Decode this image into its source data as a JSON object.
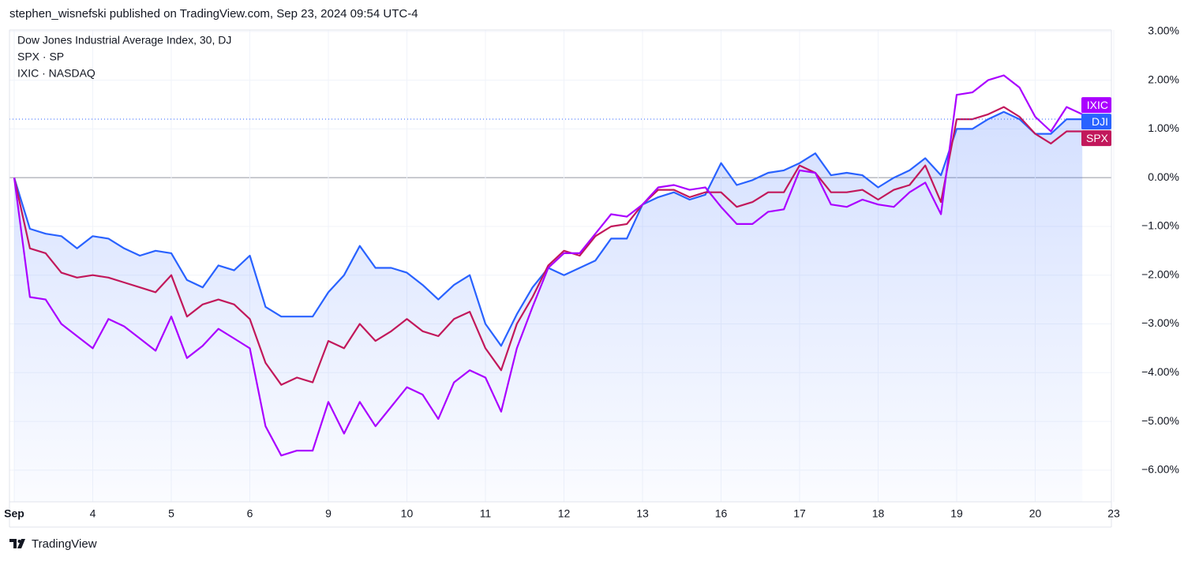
{
  "header": {
    "text": "stephen_wisnefski published on TradingView.com, Sep 23, 2024 09:54 UTC-4"
  },
  "footer": {
    "brand": "TradingView"
  },
  "chart_data": {
    "type": "line",
    "x": [
      0,
      0.2,
      0.4,
      0.6,
      0.8,
      1,
      1.2,
      1.4,
      1.6,
      1.8,
      2,
      2.2,
      2.4,
      2.6,
      2.8,
      3,
      3.2,
      3.4,
      3.6,
      3.8,
      4,
      4.2,
      4.4,
      4.6,
      4.8,
      5,
      5.2,
      5.4,
      5.6,
      5.8,
      6,
      6.2,
      6.4,
      6.6,
      6.8,
      7,
      7.2,
      7.4,
      7.6,
      7.8,
      8,
      8.2,
      8.4,
      8.6,
      8.8,
      9,
      9.2,
      9.4,
      9.6,
      9.8,
      10,
      10.2,
      10.4,
      10.6,
      10.8,
      11,
      11.2,
      11.4,
      11.6,
      11.8,
      12,
      12.2,
      12.4,
      12.6,
      12.8,
      13,
      13.2,
      13.4,
      13.6
    ],
    "series": [
      {
        "name": "Dow Jones Industrial Average Index, 30, DJ",
        "tag": "DJI",
        "color": "#2962ff",
        "values": [
          0,
          -1.05,
          -1.15,
          -1.2,
          -1.45,
          -1.2,
          -1.25,
          -1.45,
          -1.6,
          -1.5,
          -1.55,
          -2.1,
          -2.25,
          -1.8,
          -1.9,
          -1.6,
          -2.65,
          -2.85,
          -2.85,
          -2.85,
          -2.35,
          -2.0,
          -1.4,
          -1.85,
          -1.85,
          -1.95,
          -2.2,
          -2.5,
          -2.2,
          -2.0,
          -3.0,
          -3.45,
          -2.8,
          -2.25,
          -1.85,
          -2.0,
          -1.85,
          -1.7,
          -1.25,
          -1.25,
          -0.55,
          -0.4,
          -0.3,
          -0.45,
          -0.35,
          0.3,
          -0.15,
          -0.05,
          0.1,
          0.15,
          0.3,
          0.5,
          0.05,
          0.1,
          0.05,
          -0.2,
          0.0,
          0.15,
          0.4,
          0.05,
          1.0,
          1.0,
          1.2,
          1.35,
          1.2,
          0.9,
          0.9,
          1.2,
          1.2
        ]
      },
      {
        "name": "SPX · SP",
        "tag": "SPX",
        "color": "#c2185b",
        "values": [
          0,
          -1.45,
          -1.55,
          -1.95,
          -2.05,
          -2.0,
          -2.05,
          -2.15,
          -2.25,
          -2.35,
          -2.0,
          -2.85,
          -2.6,
          -2.5,
          -2.6,
          -2.9,
          -3.8,
          -4.25,
          -4.1,
          -4.2,
          -3.35,
          -3.5,
          -3.0,
          -3.35,
          -3.15,
          -2.9,
          -3.15,
          -3.25,
          -2.9,
          -2.75,
          -3.5,
          -3.95,
          -3.0,
          -2.45,
          -1.8,
          -1.5,
          -1.6,
          -1.2,
          -1.0,
          -0.95,
          -0.55,
          -0.25,
          -0.25,
          -0.4,
          -0.3,
          -0.3,
          -0.6,
          -0.5,
          -0.3,
          -0.3,
          0.25,
          0.1,
          -0.3,
          -0.3,
          -0.25,
          -0.45,
          -0.25,
          -0.15,
          0.25,
          -0.5,
          1.2,
          1.2,
          1.3,
          1.45,
          1.25,
          0.9,
          0.7,
          0.95,
          0.95
        ]
      },
      {
        "name": "IXIC · NASDAQ",
        "tag": "IXIC",
        "color": "#aa00ff",
        "values": [
          0,
          -2.45,
          -2.5,
          -3.0,
          -3.25,
          -3.5,
          -2.9,
          -3.05,
          -3.3,
          -3.55,
          -2.85,
          -3.7,
          -3.45,
          -3.1,
          -3.3,
          -3.5,
          -5.1,
          -5.7,
          -5.6,
          -5.6,
          -4.6,
          -5.25,
          -4.6,
          -5.1,
          -4.7,
          -4.3,
          -4.45,
          -4.95,
          -4.2,
          -3.95,
          -4.1,
          -4.8,
          -3.5,
          -2.65,
          -1.85,
          -1.55,
          -1.55,
          -1.15,
          -0.75,
          -0.8,
          -0.55,
          -0.2,
          -0.15,
          -0.25,
          -0.2,
          -0.6,
          -0.95,
          -0.95,
          -0.7,
          -0.65,
          0.15,
          0.1,
          -0.55,
          -0.6,
          -0.45,
          -0.55,
          -0.6,
          -0.3,
          -0.1,
          -0.75,
          1.7,
          1.75,
          2.0,
          2.1,
          1.85,
          1.25,
          0.95,
          1.45,
          1.3
        ]
      }
    ],
    "xlim": [
      -0.06,
      13.97
    ],
    "xticks": [
      {
        "value": 0,
        "label": "Sep"
      },
      {
        "value": 1,
        "label": "4"
      },
      {
        "value": 2,
        "label": "5"
      },
      {
        "value": 3,
        "label": "6"
      },
      {
        "value": 4,
        "label": "9"
      },
      {
        "value": 5,
        "label": "10"
      },
      {
        "value": 6,
        "label": "11"
      },
      {
        "value": 7,
        "label": "12"
      },
      {
        "value": 8,
        "label": "13"
      },
      {
        "value": 9,
        "label": "16"
      },
      {
        "value": 10,
        "label": "17"
      },
      {
        "value": 11,
        "label": "18"
      },
      {
        "value": 12,
        "label": "19"
      },
      {
        "value": 13,
        "label": "20"
      },
      {
        "value": 14,
        "label": "23"
      }
    ],
    "ylim": [
      -6.65,
      3.03
    ],
    "yticks": [
      {
        "value": 3,
        "label": "3.00%"
      },
      {
        "value": 2,
        "label": "2.00%"
      },
      {
        "value": 1,
        "label": "1.00%"
      },
      {
        "value": 0,
        "label": "0.00%"
      },
      {
        "value": -1,
        "label": "−1.00%"
      },
      {
        "value": -2,
        "label": "−2.00%"
      },
      {
        "value": -3,
        "label": "−3.00%"
      },
      {
        "value": -4,
        "label": "−4.00%"
      },
      {
        "value": -5,
        "label": "−5.00%"
      },
      {
        "value": -6,
        "label": "−6.00%"
      }
    ],
    "grid": true
  }
}
